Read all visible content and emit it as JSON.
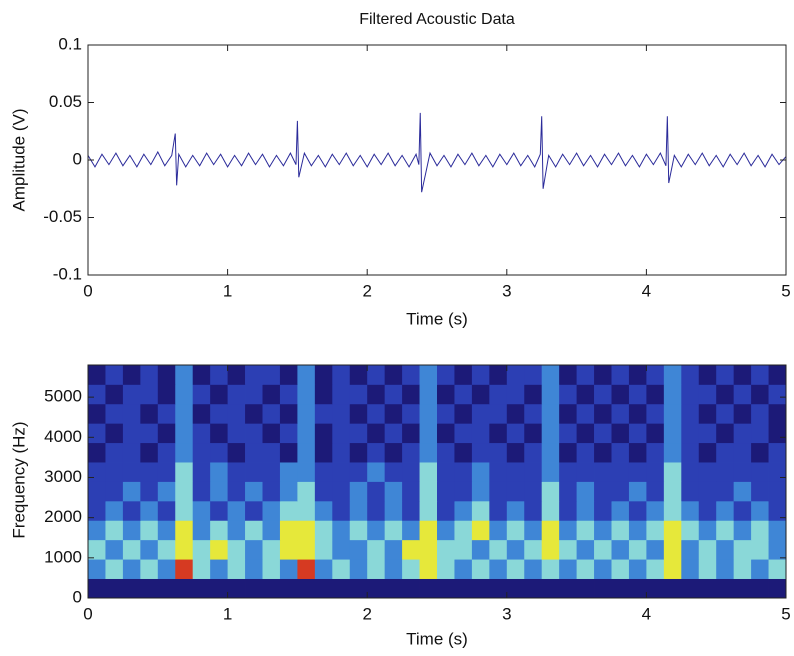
{
  "chart_data": [
    {
      "type": "line",
      "title": "Filtered Acoustic Data",
      "xlabel": "Time (s)",
      "ylabel": "Amplitude (V)",
      "color": "#2b2b9a",
      "x": [
        0,
        0.05,
        0.1,
        0.15,
        0.2,
        0.25,
        0.3,
        0.35,
        0.4,
        0.45,
        0.5,
        0.55,
        0.6,
        0.625,
        0.635,
        0.65,
        0.7,
        0.75,
        0.8,
        0.85,
        0.9,
        0.95,
        1,
        1.05,
        1.1,
        1.15,
        1.2,
        1.25,
        1.3,
        1.35,
        1.4,
        1.45,
        1.49,
        1.5,
        1.51,
        1.55,
        1.6,
        1.65,
        1.7,
        1.75,
        1.8,
        1.85,
        1.9,
        1.95,
        2,
        2.05,
        2.1,
        2.15,
        2.2,
        2.25,
        2.3,
        2.35,
        2.37,
        2.38,
        2.39,
        2.45,
        2.5,
        2.55,
        2.6,
        2.65,
        2.7,
        2.75,
        2.8,
        2.85,
        2.9,
        2.95,
        3,
        3.05,
        3.1,
        3.15,
        3.2,
        3.24,
        3.25,
        3.26,
        3.3,
        3.35,
        3.4,
        3.45,
        3.5,
        3.55,
        3.6,
        3.65,
        3.7,
        3.75,
        3.8,
        3.85,
        3.9,
        3.95,
        4,
        4.05,
        4.1,
        4.14,
        4.15,
        4.16,
        4.2,
        4.25,
        4.3,
        4.35,
        4.4,
        4.45,
        4.5,
        4.55,
        4.6,
        4.65,
        4.7,
        4.75,
        4.8,
        4.85,
        4.9,
        4.95,
        5
      ],
      "values": [
        0.004,
        -0.006,
        0.005,
        -0.004,
        0.006,
        -0.005,
        0.004,
        -0.006,
        0.005,
        -0.004,
        0.007,
        -0.005,
        0.004,
        0.023,
        -0.022,
        0.005,
        -0.006,
        0.004,
        -0.005,
        0.006,
        -0.004,
        0.005,
        -0.006,
        0.004,
        -0.005,
        0.006,
        -0.004,
        0.005,
        -0.006,
        0.004,
        -0.005,
        0.006,
        -0.004,
        0.034,
        -0.015,
        0.006,
        -0.005,
        0.004,
        -0.006,
        0.005,
        -0.004,
        0.006,
        -0.005,
        0.004,
        -0.006,
        0.005,
        -0.004,
        0.006,
        -0.005,
        0.004,
        -0.006,
        0.005,
        -0.004,
        0.041,
        -0.028,
        0.006,
        -0.005,
        0.004,
        -0.006,
        0.005,
        -0.004,
        0.006,
        -0.005,
        0.004,
        -0.006,
        0.005,
        -0.004,
        0.006,
        -0.005,
        0.004,
        -0.006,
        0.005,
        0.038,
        -0.025,
        0.004,
        -0.006,
        0.005,
        -0.004,
        0.006,
        -0.005,
        0.004,
        -0.006,
        0.005,
        -0.004,
        0.006,
        -0.005,
        0.004,
        -0.006,
        0.005,
        -0.004,
        0.006,
        -0.005,
        0.038,
        -0.02,
        0.004,
        -0.006,
        0.005,
        -0.004,
        0.006,
        -0.005,
        0.004,
        -0.006,
        0.005,
        -0.004,
        0.006,
        -0.005,
        0.004,
        -0.006,
        0.005,
        -0.004,
        0.003
      ],
      "xlim": [
        0,
        5
      ],
      "xticks": [
        0,
        1,
        2,
        3,
        4,
        5
      ],
      "ylim": [
        -0.1,
        0.1
      ],
      "yticks": [
        -0.1,
        -0.05,
        0,
        0.05,
        0.1
      ]
    },
    {
      "type": "heatmap",
      "xlabel": "Time (s)",
      "ylabel": "Frequency (Hz)",
      "colormap": [
        "#1c1a78",
        "#2c3fb4",
        "#3f86d6",
        "#8ad8d8",
        "#e6e83a",
        "#d63a22"
      ],
      "xlim": [
        0,
        5
      ],
      "xticks": [
        0,
        1,
        2,
        3,
        4,
        5
      ],
      "ylim": [
        0,
        5800
      ],
      "yticks": [
        0,
        1000,
        2000,
        3000,
        4000,
        5000
      ],
      "values": [
        [
          0,
          0,
          0,
          0,
          0,
          0,
          0,
          0,
          0,
          0,
          0,
          0,
          0,
          0,
          0,
          0,
          0,
          0,
          0,
          0,
          0,
          0,
          0,
          0,
          0,
          0,
          0,
          0,
          0,
          0,
          0,
          0,
          0,
          0,
          0,
          0,
          0,
          0,
          0,
          0
        ],
        [
          2,
          3,
          2,
          3,
          2,
          5,
          3,
          2,
          3,
          2,
          3,
          2,
          5,
          2,
          3,
          2,
          3,
          2,
          3,
          4,
          3,
          2,
          3,
          2,
          3,
          2,
          3,
          2,
          3,
          2,
          3,
          2,
          3,
          4,
          2,
          3,
          2,
          3,
          2,
          3
        ],
        [
          3,
          2,
          3,
          2,
          3,
          4,
          3,
          4,
          3,
          2,
          3,
          4,
          4,
          3,
          2,
          2,
          3,
          2,
          4,
          4,
          3,
          3,
          2,
          3,
          2,
          3,
          4,
          3,
          2,
          3,
          2,
          3,
          2,
          4,
          2,
          3,
          2,
          3,
          3,
          2
        ],
        [
          2,
          3,
          2,
          3,
          2,
          4,
          2,
          3,
          2,
          3,
          2,
          4,
          4,
          3,
          2,
          3,
          2,
          3,
          2,
          4,
          2,
          3,
          4,
          2,
          3,
          2,
          4,
          2,
          3,
          2,
          3,
          2,
          3,
          4,
          3,
          2,
          3,
          2,
          3,
          2
        ],
        [
          1,
          2,
          1,
          2,
          1,
          3,
          2,
          1,
          2,
          1,
          2,
          3,
          3,
          2,
          1,
          2,
          1,
          2,
          1,
          3,
          1,
          2,
          3,
          1,
          2,
          1,
          3,
          1,
          2,
          1,
          2,
          1,
          2,
          3,
          2,
          1,
          2,
          1,
          2,
          1
        ],
        [
          1,
          1,
          2,
          1,
          2,
          3,
          1,
          2,
          1,
          2,
          1,
          2,
          3,
          1,
          1,
          2,
          1,
          2,
          1,
          3,
          1,
          1,
          2,
          1,
          1,
          1,
          3,
          1,
          2,
          1,
          1,
          2,
          1,
          3,
          1,
          1,
          1,
          2,
          1,
          1
        ],
        [
          1,
          1,
          1,
          1,
          1,
          3,
          1,
          2,
          1,
          1,
          1,
          2,
          2,
          1,
          1,
          1,
          2,
          1,
          1,
          3,
          1,
          1,
          2,
          1,
          1,
          1,
          2,
          1,
          1,
          1,
          1,
          1,
          1,
          3,
          1,
          1,
          1,
          1,
          1,
          1
        ],
        [
          0,
          1,
          1,
          0,
          1,
          2,
          1,
          1,
          0,
          1,
          1,
          0,
          2,
          0,
          1,
          0,
          1,
          0,
          1,
          2,
          1,
          0,
          1,
          1,
          0,
          1,
          2,
          0,
          1,
          0,
          1,
          0,
          1,
          2,
          1,
          0,
          1,
          1,
          0,
          1
        ],
        [
          1,
          0,
          1,
          1,
          0,
          2,
          1,
          0,
          1,
          1,
          0,
          1,
          2,
          0,
          1,
          1,
          0,
          1,
          0,
          2,
          0,
          1,
          1,
          0,
          1,
          0,
          2,
          1,
          0,
          1,
          0,
          1,
          0,
          2,
          1,
          1,
          0,
          1,
          1,
          0
        ],
        [
          0,
          1,
          1,
          0,
          1,
          2,
          0,
          1,
          1,
          0,
          1,
          0,
          2,
          1,
          1,
          0,
          1,
          0,
          1,
          2,
          1,
          0,
          1,
          1,
          0,
          1,
          2,
          0,
          1,
          0,
          1,
          0,
          1,
          2,
          1,
          0,
          1,
          0,
          1,
          0
        ],
        [
          1,
          0,
          1,
          1,
          0,
          2,
          1,
          0,
          1,
          1,
          0,
          1,
          2,
          0,
          1,
          1,
          0,
          1,
          0,
          2,
          0,
          1,
          0,
          1,
          1,
          0,
          2,
          1,
          0,
          1,
          0,
          1,
          0,
          2,
          1,
          1,
          0,
          1,
          0,
          1
        ],
        [
          0,
          1,
          0,
          1,
          0,
          2,
          0,
          1,
          0,
          1,
          1,
          0,
          2,
          0,
          1,
          0,
          1,
          0,
          1,
          2,
          1,
          0,
          1,
          0,
          1,
          1,
          2,
          0,
          1,
          0,
          1,
          0,
          1,
          2,
          1,
          0,
          1,
          0,
          1,
          0
        ]
      ]
    }
  ]
}
